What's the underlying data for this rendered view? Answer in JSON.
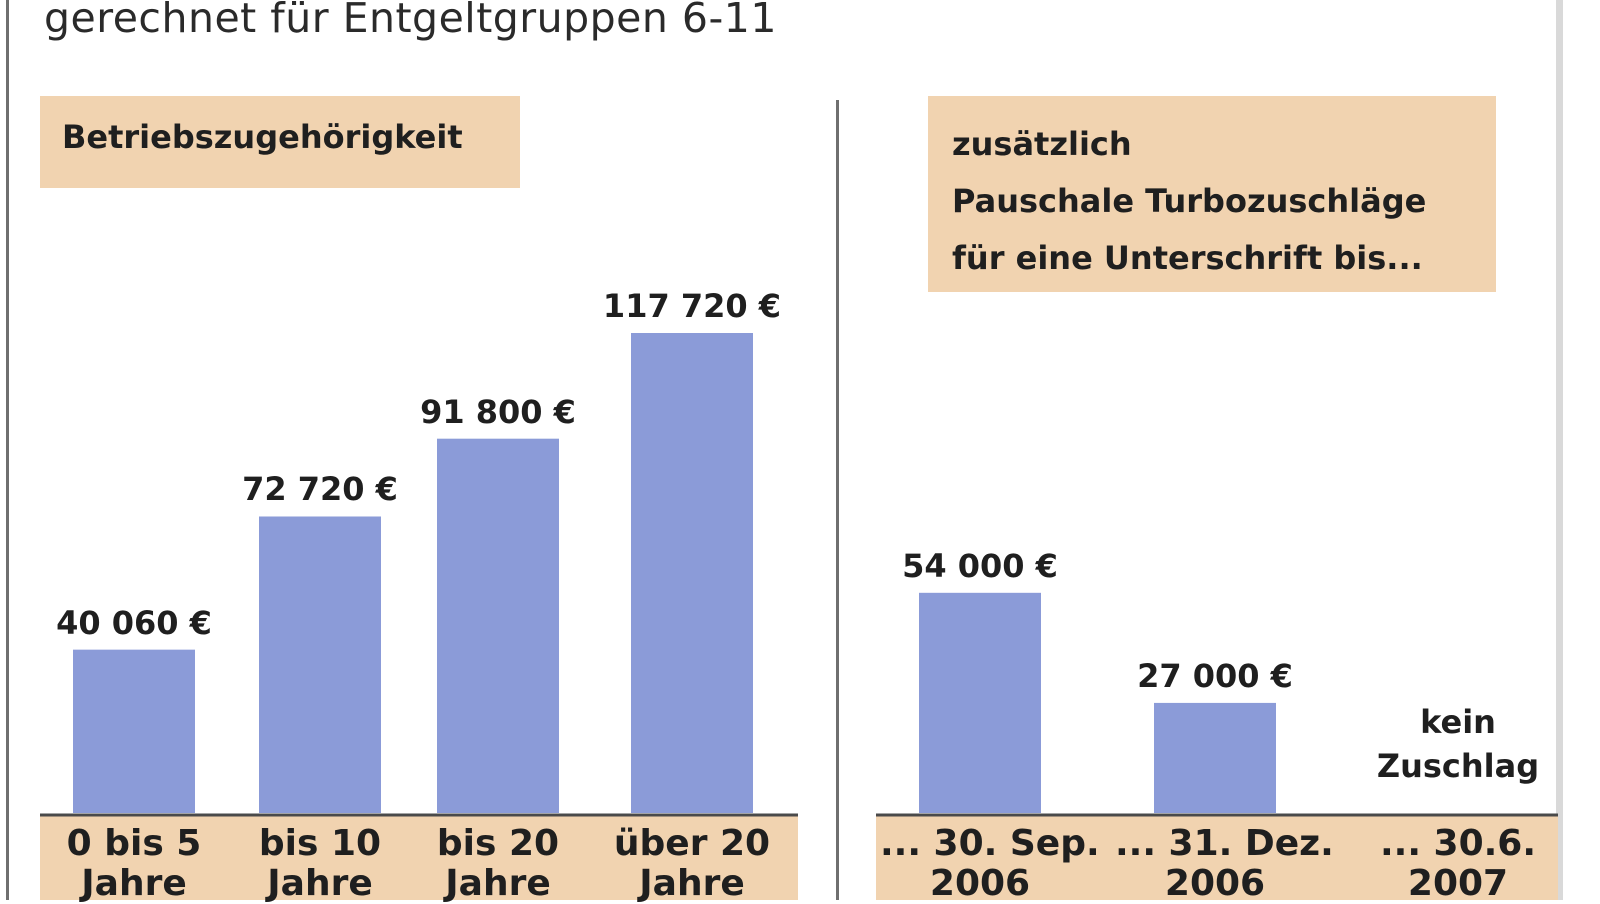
{
  "subtitle": "gerechnet für Entgeltgruppen 6-11",
  "left_panel_title": "Betriebszugehörigkeit",
  "right_panel_title_lines": [
    "zusätzlich",
    "Pauschale Turbozuschläge",
    "für eine Unterschrift bis..."
  ],
  "colors": {
    "bar": "#8b9bd8",
    "label_box": "#f1d3b0",
    "axis": "#4a4a4a"
  },
  "chart_data": [
    {
      "type": "bar",
      "title": "Betriebszugehörigkeit",
      "categories": [
        [
          "0 bis 5",
          "Jahre"
        ],
        [
          "bis 10",
          "Jahre"
        ],
        [
          "bis 20",
          "Jahre"
        ],
        [
          "über 20",
          "Jahre"
        ]
      ],
      "values": [
        40060,
        72720,
        91800,
        117720
      ],
      "value_labels": [
        "40 060 €",
        "72 720 €",
        "91 800 €",
        "117 720 €"
      ],
      "unit": "€",
      "ylim": [
        0,
        130000
      ]
    },
    {
      "type": "bar",
      "title": "zusätzlich Pauschale Turbozuschläge für eine Unterschrift bis...",
      "categories": [
        [
          "... 30. Sep.",
          "2006"
        ],
        [
          "... 31. Dez.",
          "2006"
        ],
        [
          "... 30.6.",
          "2007"
        ]
      ],
      "values": [
        54000,
        27000,
        0
      ],
      "value_labels": [
        "54 000 €",
        "27 000 €",
        ""
      ],
      "note": [
        "kein",
        "Zuschlag"
      ],
      "unit": "€",
      "ylim": [
        0,
        130000
      ]
    }
  ]
}
